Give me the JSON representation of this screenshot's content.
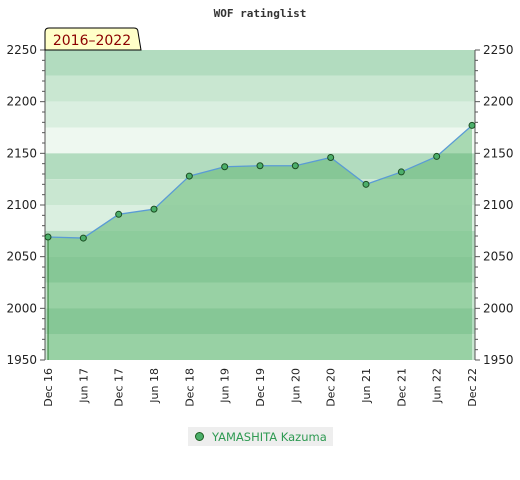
{
  "chart_data": {
    "type": "line",
    "title": "WOF ratinglist",
    "badge": "2016–2022",
    "ylim": [
      1950,
      2250
    ],
    "yticks": [
      "2250",
      "2200",
      "2150",
      "2100",
      "2050",
      "2000",
      "1950"
    ],
    "categories": [
      "Dec 16",
      "Jun 17",
      "Dec 17",
      "Jun 18",
      "Dec 18",
      "Jun 19",
      "Dec 19",
      "Jun 20",
      "Dec 20",
      "Jun 21",
      "Dec 21",
      "Jun 22",
      "Dec 22"
    ],
    "series": [
      {
        "name": "YAMASHITA Kazuma",
        "x": [
          0,
          1,
          2,
          3,
          4,
          5,
          6,
          7,
          8,
          9,
          10,
          11,
          12
        ],
        "values": [
          2069,
          2068,
          2091,
          2096,
          2128,
          2137,
          2138,
          2138,
          2146,
          2120,
          2132,
          2147,
          2177
        ]
      }
    ],
    "colors": {
      "line": "#5a9bd5",
      "fill": "#6fbf7f",
      "marker": "#4caf6a",
      "badge_bg": "#ffffc8"
    }
  }
}
